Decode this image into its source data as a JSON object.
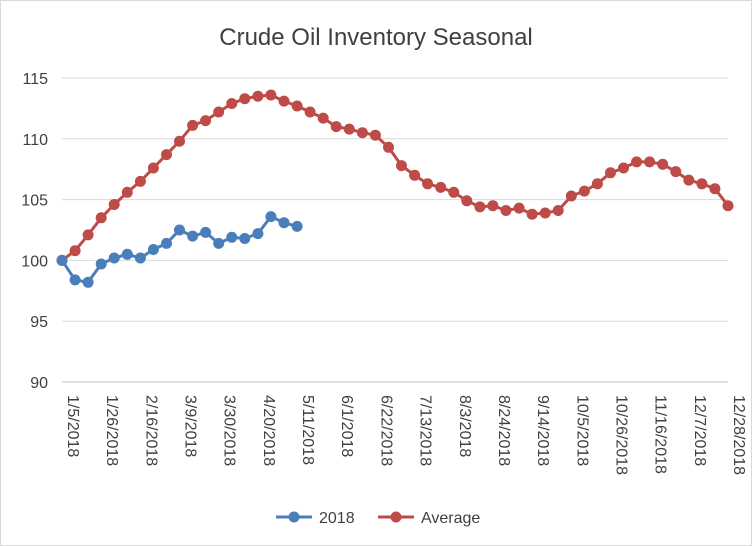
{
  "chart_data": {
    "type": "line",
    "title": "Crude Oil Inventory Seasonal",
    "xlabel": "",
    "ylabel": "",
    "ylim": [
      90,
      115
    ],
    "yticks": [
      90,
      95,
      100,
      105,
      110,
      115
    ],
    "grid": "horizontal",
    "legend_position": "bottom",
    "x_tick_labels": [
      "1/5/2018",
      "1/26/2018",
      "2/16/2018",
      "3/9/2018",
      "3/30/2018",
      "4/20/2018",
      "5/11/2018",
      "6/1/2018",
      "6/22/2018",
      "7/13/2018",
      "8/3/2018",
      "8/24/2018",
      "9/14/2018",
      "10/5/2018",
      "10/26/2018",
      "11/16/2018",
      "12/7/2018",
      "12/28/2018"
    ],
    "x_tick_every": 3,
    "n_weeks": 52,
    "series": [
      {
        "name": "2018",
        "color": "#4a7ebb",
        "values": [
          100.0,
          98.4,
          98.2,
          99.7,
          100.2,
          100.5,
          100.2,
          100.9,
          101.4,
          102.5,
          102.0,
          102.3,
          101.4,
          101.9,
          101.8,
          102.2,
          103.6,
          103.1,
          102.8
        ]
      },
      {
        "name": "Average",
        "color": "#be4b48",
        "values": [
          100.0,
          100.8,
          102.1,
          103.5,
          104.6,
          105.6,
          106.5,
          107.6,
          108.7,
          109.8,
          111.1,
          111.5,
          112.2,
          112.9,
          113.3,
          113.5,
          113.6,
          113.1,
          112.7,
          112.2,
          111.7,
          111.0,
          110.8,
          110.5,
          110.3,
          109.3,
          107.8,
          107.0,
          106.3,
          106.0,
          105.6,
          104.9,
          104.4,
          104.5,
          104.1,
          104.3,
          103.8,
          103.9,
          104.1,
          105.3,
          105.7,
          106.3,
          107.2,
          107.6,
          108.1,
          108.1,
          107.9,
          107.3,
          106.6,
          106.3,
          105.9,
          104.5
        ]
      }
    ]
  }
}
